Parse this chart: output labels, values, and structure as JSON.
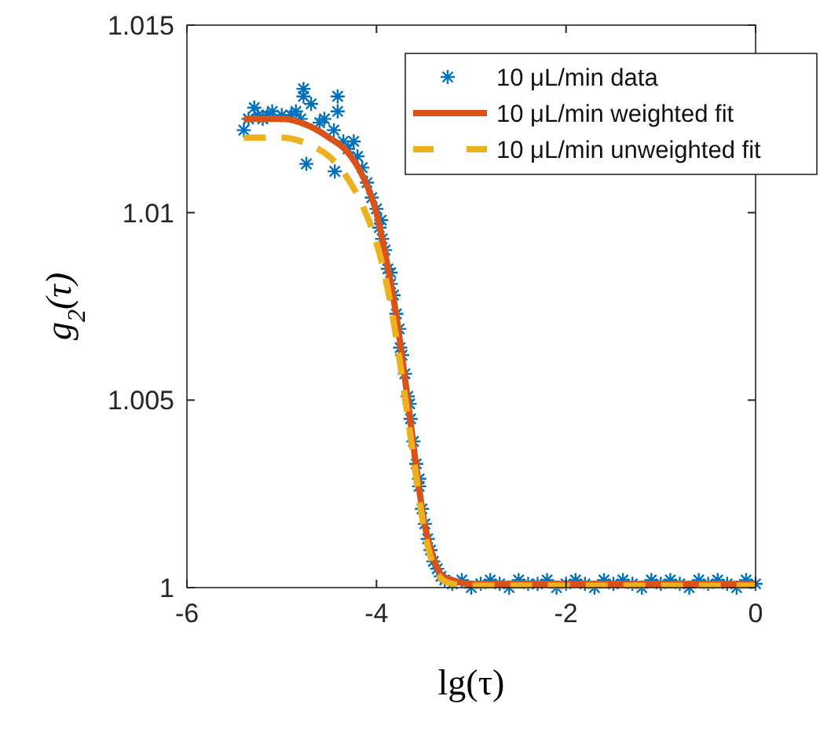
{
  "chart_data": {
    "type": "line",
    "xlabel": "lg(τ)",
    "ylabel": "g$_{2}$(τ)",
    "xlim": [
      -6,
      0
    ],
    "xticks": [
      -6,
      -4,
      -2,
      0
    ],
    "ylim": [
      1,
      1.015
    ],
    "yticks": [
      1,
      1.005,
      1.01,
      1.015
    ],
    "grid": false,
    "legend": "top right",
    "series": [
      {
        "name": "10 μL/min data",
        "type": "scatter",
        "marker": "cross",
        "color": "#0072bd",
        "x": [
          -5.4,
          -5.29,
          -4.77,
          -4.77,
          -4.69,
          -4.74,
          -4.41,
          -4.41,
          -4.44,
          -4.24,
          -5.35,
          -5.25,
          -5.2,
          -5.15,
          -5.1,
          -5.0,
          -4.9,
          -4.85,
          -4.8,
          -4.6,
          -4.55,
          -4.45,
          -4.35,
          -4.3,
          -4.2,
          -4.15,
          -4.1,
          -4.05,
          -4.0,
          -3.97,
          -3.95,
          -3.94,
          -3.91,
          -3.88,
          -3.85,
          -3.85,
          -3.82,
          -3.79,
          -3.76,
          -3.75,
          -3.73,
          -3.7,
          -3.67,
          -3.65,
          -3.64,
          -3.61,
          -3.58,
          -3.55,
          -3.55,
          -3.52,
          -3.49,
          -3.46,
          -3.43,
          -3.4,
          -3.36,
          -3.32,
          -3.28,
          -3.2,
          -3.1,
          -3.0,
          -2.9,
          -2.8,
          -2.7,
          -2.6,
          -2.5,
          -2.4,
          -2.3,
          -2.2,
          -2.1,
          -2.0,
          -1.9,
          -1.8,
          -1.7,
          -1.6,
          -1.5,
          -1.4,
          -1.3,
          -1.2,
          -1.1,
          -1.0,
          -0.9,
          -0.8,
          -0.7,
          -0.6,
          -0.5,
          -0.4,
          -0.3,
          -0.2,
          -0.1,
          0
        ],
        "values": [
          1.0122,
          1.0128,
          1.0133,
          1.0131,
          1.0129,
          1.0113,
          1.0131,
          1.0127,
          1.0111,
          1.0119,
          1.0125,
          1.0126,
          1.0125,
          1.0126,
          1.0127,
          1.0126,
          1.0126,
          1.0127,
          1.0125,
          1.0124,
          1.0125,
          1.0122,
          1.0119,
          1.0117,
          1.0115,
          1.0112,
          1.0108,
          1.0104,
          1.0101,
          1.0096,
          1.0098,
          1.0093,
          1.009,
          1.0085,
          1.0081,
          1.0084,
          1.0078,
          1.0073,
          1.0069,
          1.0064,
          1.0062,
          1.0057,
          1.0051,
          1.0049,
          1.0045,
          1.0039,
          1.0033,
          1.0027,
          1.0029,
          1.0021,
          1.0017,
          1.0013,
          1.001,
          1.0007,
          1.0005,
          1.0003,
          1.0002,
          1.0001,
          1.0002,
          1.0,
          1.0001,
          1.0002,
          1.0001,
          1.0,
          1.0002,
          1.0001,
          1.0001,
          1.0002,
          1.0,
          1.0001,
          1.0002,
          1.0001,
          1.0,
          1.0002,
          1.0001,
          1.0002,
          1.0001,
          1.0,
          1.0002,
          1.0001,
          1.0002,
          1.0001,
          1.0,
          1.0002,
          1.0001,
          1.0002,
          1.0001,
          1.0,
          1.0002,
          1.0001
        ]
      },
      {
        "name": "10 μL/min weighted fit",
        "type": "line",
        "line_style": "solid",
        "color": "#d95319",
        "x": [
          -5.4,
          -5.0,
          -4.7,
          -4.5,
          -4.3,
          -4.15,
          -4.0,
          -3.9,
          -3.8,
          -3.7,
          -3.6,
          -3.5,
          -3.4,
          -3.3,
          -3.2,
          -3.0,
          -2.0,
          0
        ],
        "values": [
          1.0125,
          1.0125,
          1.0123,
          1.012,
          1.0116,
          1.011,
          1.01,
          1.0088,
          1.0074,
          1.0056,
          1.0036,
          1.0018,
          1.0008,
          1.0003,
          1.0002,
          1.0001,
          1.0001,
          1.0001
        ]
      },
      {
        "name": "10 μL/min unweighted fit",
        "type": "line",
        "line_style": "dashed",
        "color": "#edb120",
        "x": [
          -5.4,
          -5.0,
          -4.7,
          -4.5,
          -4.3,
          -4.15,
          -4.0,
          -3.9,
          -3.8,
          -3.7,
          -3.6,
          -3.5,
          -3.4,
          -3.3,
          -3.2,
          -3.0,
          -2.0,
          0
        ],
        "values": [
          1.012,
          1.012,
          1.0118,
          1.0115,
          1.0109,
          1.0102,
          1.0092,
          1.0082,
          1.0068,
          1.0051,
          1.0033,
          1.0016,
          1.0006,
          1.0002,
          1.0001,
          1.00005,
          1.00005,
          1.00005
        ]
      }
    ]
  }
}
